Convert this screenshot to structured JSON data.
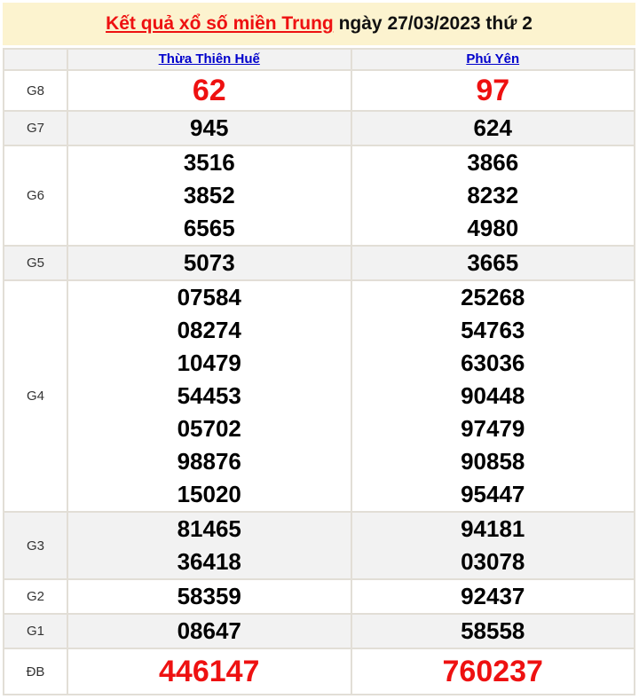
{
  "title": {
    "link": "Kết quả xổ số miền Trung",
    "suffix": " ngày 27/03/2023 thứ 2"
  },
  "columns": [
    "Thừa Thiên Huế",
    "Phú Yên"
  ],
  "rows": [
    {
      "label": "G8",
      "highlight": true,
      "col1": [
        "62"
      ],
      "col2": [
        "97"
      ]
    },
    {
      "label": "G7",
      "highlight": false,
      "col1": [
        "945"
      ],
      "col2": [
        "624"
      ]
    },
    {
      "label": "G6",
      "highlight": false,
      "col1": [
        "3516",
        "3852",
        "6565"
      ],
      "col2": [
        "3866",
        "8232",
        "4980"
      ]
    },
    {
      "label": "G5",
      "highlight": false,
      "col1": [
        "5073"
      ],
      "col2": [
        "3665"
      ]
    },
    {
      "label": "G4",
      "highlight": false,
      "col1": [
        "07584",
        "08274",
        "10479",
        "54453",
        "05702",
        "98876",
        "15020"
      ],
      "col2": [
        "25268",
        "54763",
        "63036",
        "90448",
        "97479",
        "90858",
        "95447"
      ]
    },
    {
      "label": "G3",
      "highlight": false,
      "col1": [
        "81465",
        "36418"
      ],
      "col2": [
        "94181",
        "03078"
      ]
    },
    {
      "label": "G2",
      "highlight": false,
      "col1": [
        "58359"
      ],
      "col2": [
        "92437"
      ]
    },
    {
      "label": "G1",
      "highlight": false,
      "col1": [
        "08647"
      ],
      "col2": [
        "58558"
      ]
    },
    {
      "label": "ĐB",
      "highlight": true,
      "col1": [
        "446147"
      ],
      "col2": [
        "760237"
      ]
    }
  ],
  "colors": {
    "header_bg": "#fcf3cf",
    "accent_red": "#ee1111",
    "link_blue": "#0000cc",
    "stripe_gray": "#f2f2f2",
    "border": "#e2ded6"
  }
}
